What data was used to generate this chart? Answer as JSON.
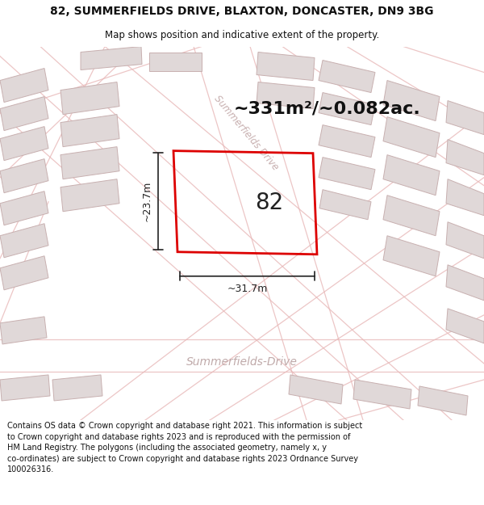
{
  "title_line1": "82, SUMMERFIELDS DRIVE, BLAXTON, DONCASTER, DN9 3BG",
  "title_line2": "Map shows position and indicative extent of the property.",
  "area_text": "~331m²/~0.082ac.",
  "label_82": "82",
  "dim_width": "~31.7m",
  "dim_height": "~23.7m",
  "street_label_diag": "Summerfields Drive",
  "street_label_horiz": "Summerfields-Drive",
  "footer_text": "Contains OS data © Crown copyright and database right 2021. This information is subject to Crown copyright and database rights 2023 and is reproduced with the permission of HM Land Registry. The polygons (including the associated geometry, namely x, y co-ordinates) are subject to Crown copyright and database rights 2023 Ordnance Survey 100026316.",
  "map_bg": "#f5f0f0",
  "road_color": "#ffffff",
  "building_fill": "#e0d8d8",
  "building_edge": "#c8b0b0",
  "road_line_color": "#e8b8b8",
  "plot_edge": "#dd0000",
  "dim_color": "#222222",
  "title_color": "#111111",
  "footer_color": "#111111",
  "street_diag_color": "#c8b0b0",
  "street_horiz_color": "#c0aaaa"
}
